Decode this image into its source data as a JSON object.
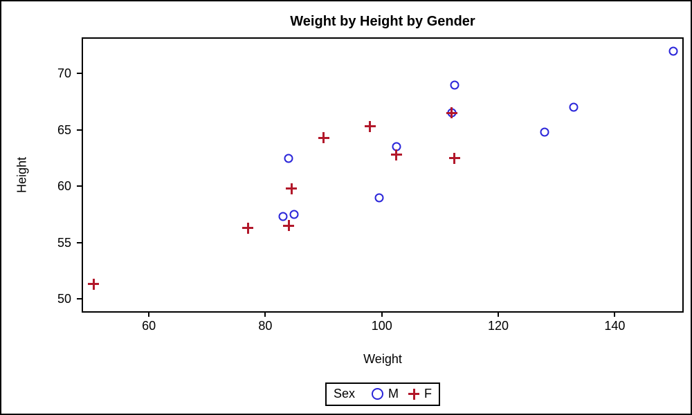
{
  "colors": {
    "male_marker": "#2A25D9",
    "female_marker": "#B2182B",
    "frame": "#000000",
    "background": "#FFFFFF"
  },
  "chart_data": {
    "type": "scatter",
    "title": "Weight by Height by Gender",
    "xlabel": "Weight",
    "ylabel": "Height",
    "xlim": [
      48.7,
      151.6
    ],
    "ylim": [
      48.9,
      73.1
    ],
    "x_ticks": [
      60,
      80,
      100,
      120,
      140
    ],
    "y_ticks": [
      50,
      55,
      60,
      65,
      70
    ],
    "grid": "off",
    "legend": {
      "title": "Sex",
      "position": "bottom-center",
      "entries": [
        {
          "label": "M",
          "marker": "circle",
          "color": "#2A25D9"
        },
        {
          "label": "F",
          "marker": "plus",
          "color": "#B2182B"
        }
      ]
    },
    "series": [
      {
        "name": "M",
        "marker": "circle",
        "color": "#2A25D9",
        "points": [
          [
            112.5,
            69.0
          ],
          [
            102.5,
            63.5
          ],
          [
            83.0,
            57.3
          ],
          [
            84.0,
            62.5
          ],
          [
            99.5,
            59.0
          ],
          [
            150.0,
            72.0
          ],
          [
            128.0,
            64.8
          ],
          [
            133.0,
            67.0
          ],
          [
            85.0,
            57.5
          ],
          [
            112.0,
            66.5
          ]
        ]
      },
      {
        "name": "F",
        "marker": "plus",
        "color": "#B2182B",
        "points": [
          [
            84.0,
            56.5
          ],
          [
            98.0,
            65.3
          ],
          [
            102.5,
            62.8
          ],
          [
            84.5,
            59.8
          ],
          [
            112.5,
            62.5
          ],
          [
            50.5,
            51.3
          ],
          [
            90.0,
            64.3
          ],
          [
            77.0,
            56.3
          ],
          [
            112.0,
            66.5
          ]
        ]
      }
    ]
  }
}
